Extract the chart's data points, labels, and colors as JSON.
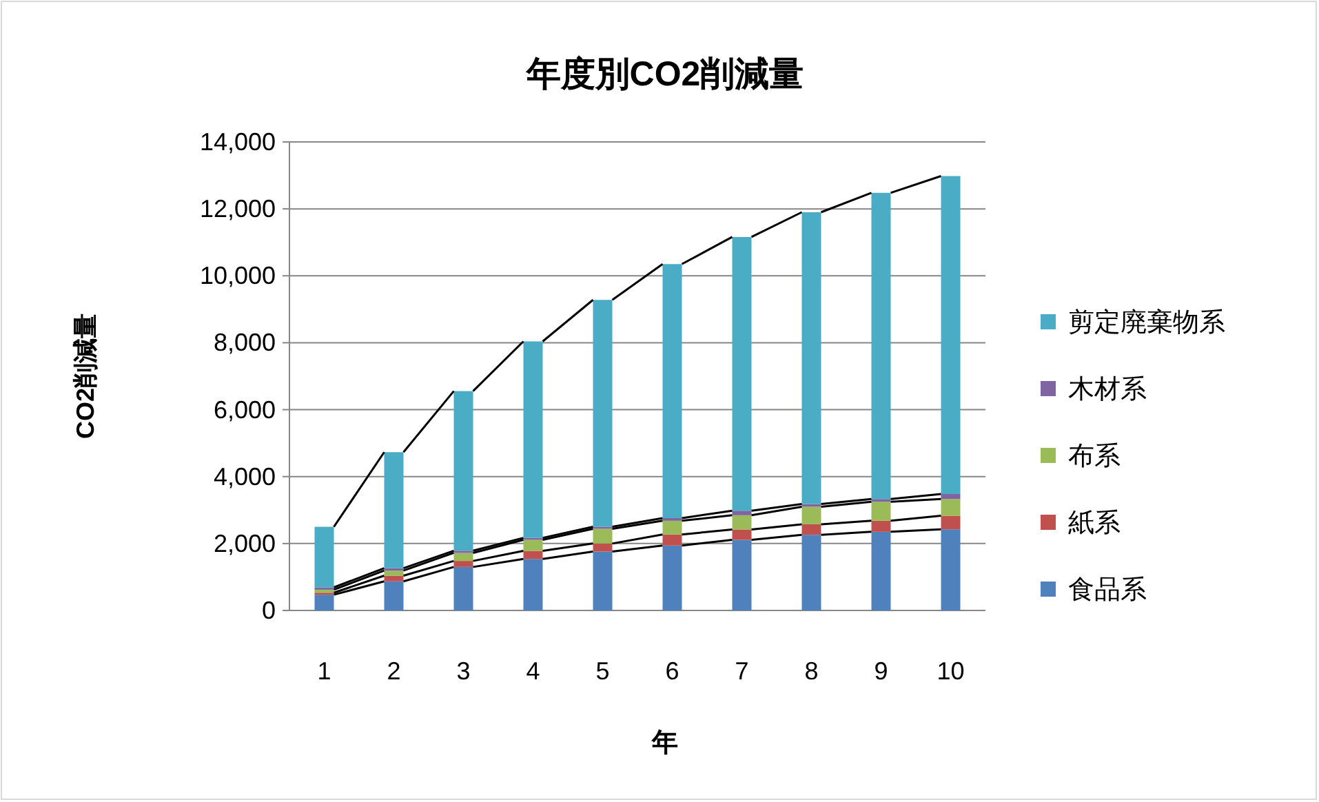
{
  "chart_data": {
    "type": "bar",
    "stacked": true,
    "title": "年度別CO2削減量",
    "xlabel": "年",
    "ylabel": "CO2削減量",
    "categories": [
      "1",
      "2",
      "3",
      "4",
      "5",
      "6",
      "7",
      "8",
      "9",
      "10"
    ],
    "series": [
      {
        "name": "食品系",
        "color": "#4f81bd",
        "values": [
          470,
          870,
          1300,
          1540,
          1760,
          1940,
          2110,
          2260,
          2350,
          2425
        ]
      },
      {
        "name": "紙系",
        "color": "#c0504d",
        "values": [
          60,
          170,
          180,
          240,
          240,
          330,
          310,
          315,
          330,
          405
        ]
      },
      {
        "name": "布系",
        "color": "#9bbb59",
        "values": [
          90,
          150,
          240,
          330,
          440,
          410,
          425,
          525,
          570,
          500
        ]
      },
      {
        "name": "木材系",
        "color": "#8064a2",
        "values": [
          70,
          75,
          65,
          60,
          60,
          80,
          135,
          80,
          80,
          150
        ]
      },
      {
        "name": "剪定廃棄物系",
        "color": "#4bacc6",
        "values": [
          1810,
          3465,
          4770,
          5870,
          6780,
          7590,
          8180,
          8720,
          9150,
          9500
        ]
      }
    ],
    "ylim": [
      0,
      14000
    ],
    "yticks": [
      {
        "value": 0,
        "label": "0"
      },
      {
        "value": 2000,
        "label": "2,000"
      },
      {
        "value": 4000,
        "label": "4,000"
      },
      {
        "value": 6000,
        "label": "6,000"
      },
      {
        "value": 8000,
        "label": "8,000"
      },
      {
        "value": 10000,
        "label": "10,000"
      },
      {
        "value": 12000,
        "label": "12,000"
      },
      {
        "value": 14000,
        "label": "14,000"
      }
    ],
    "grid": "y",
    "legend": "right"
  }
}
